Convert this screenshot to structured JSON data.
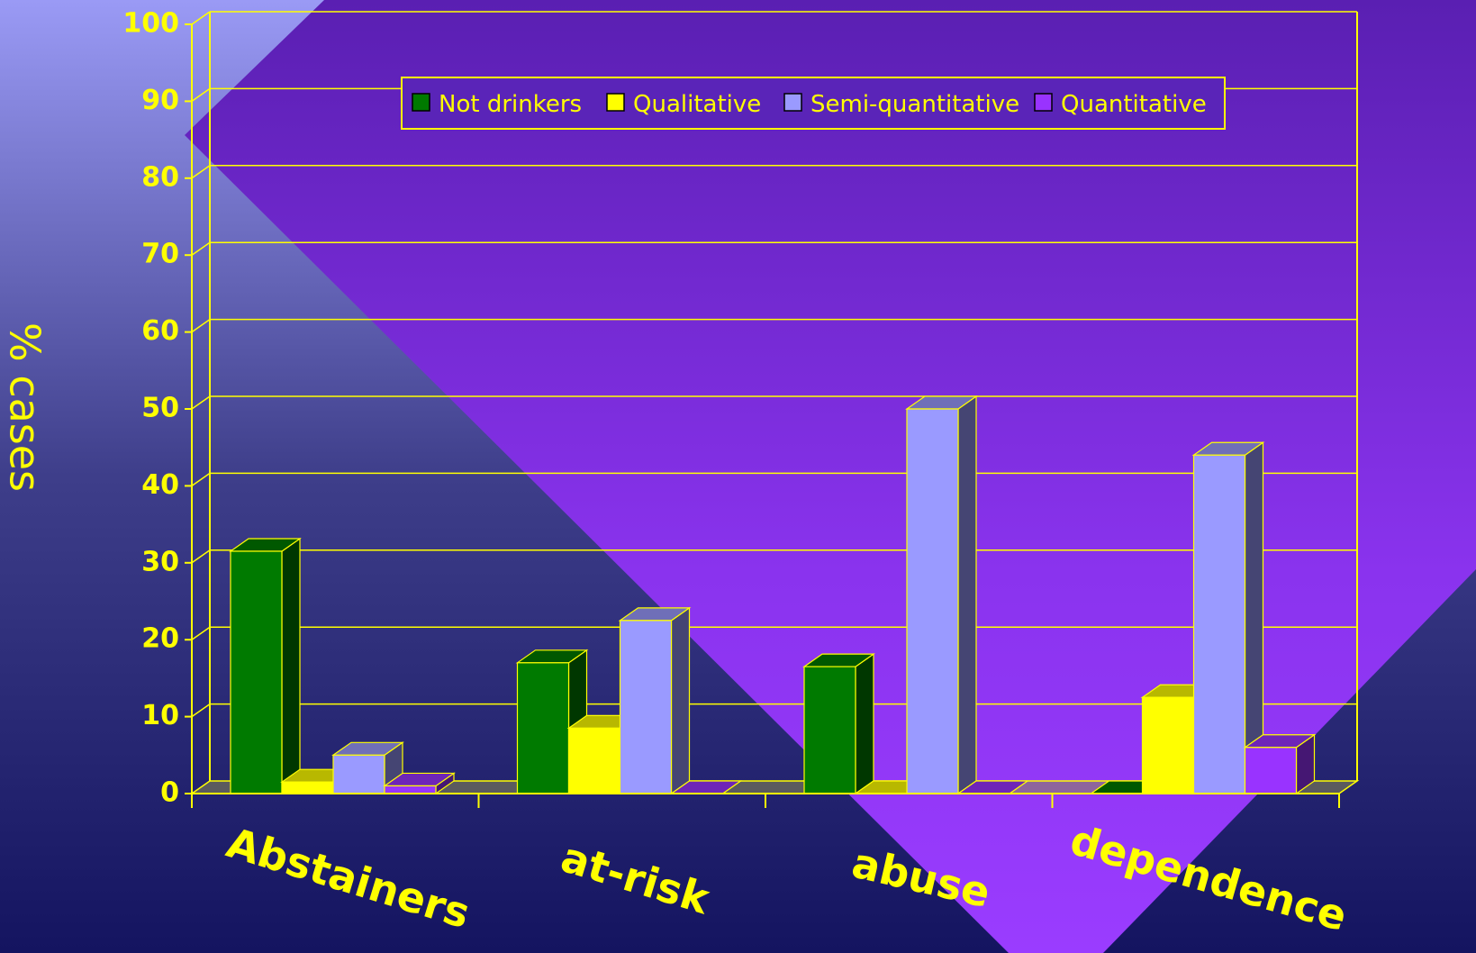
{
  "chart_data": {
    "type": "bar",
    "categories": [
      "Abstainers",
      "at-risk",
      "abuse",
      "dependence"
    ],
    "series": [
      {
        "name": "Not drinkers",
        "values": [
          31.5,
          17,
          16.5,
          0
        ]
      },
      {
        "name": "Qualitative",
        "values": [
          1.5,
          8.5,
          0,
          12.5
        ]
      },
      {
        "name": "Semi-quantitative",
        "values": [
          5,
          22.5,
          50,
          44
        ]
      },
      {
        "name": "Quantitative",
        "values": [
          1,
          0,
          0,
          6
        ]
      }
    ],
    "series_colors": [
      "#007a00",
      "#ffff00",
      "#9a9aff",
      "#9933ff"
    ],
    "title": "",
    "xlabel": "",
    "ylabel": "% cases",
    "ylim": [
      0,
      100
    ],
    "yticks": [
      "0",
      "10",
      "20",
      "30",
      "40",
      "50",
      "60",
      "70",
      "80",
      "90",
      "100"
    ],
    "grid": true,
    "legend_position": "top",
    "colors": {
      "axis": "#ffff00",
      "text": "#ffff00",
      "background_top": "#5a24b8",
      "background_bottom": "#151565"
    }
  }
}
